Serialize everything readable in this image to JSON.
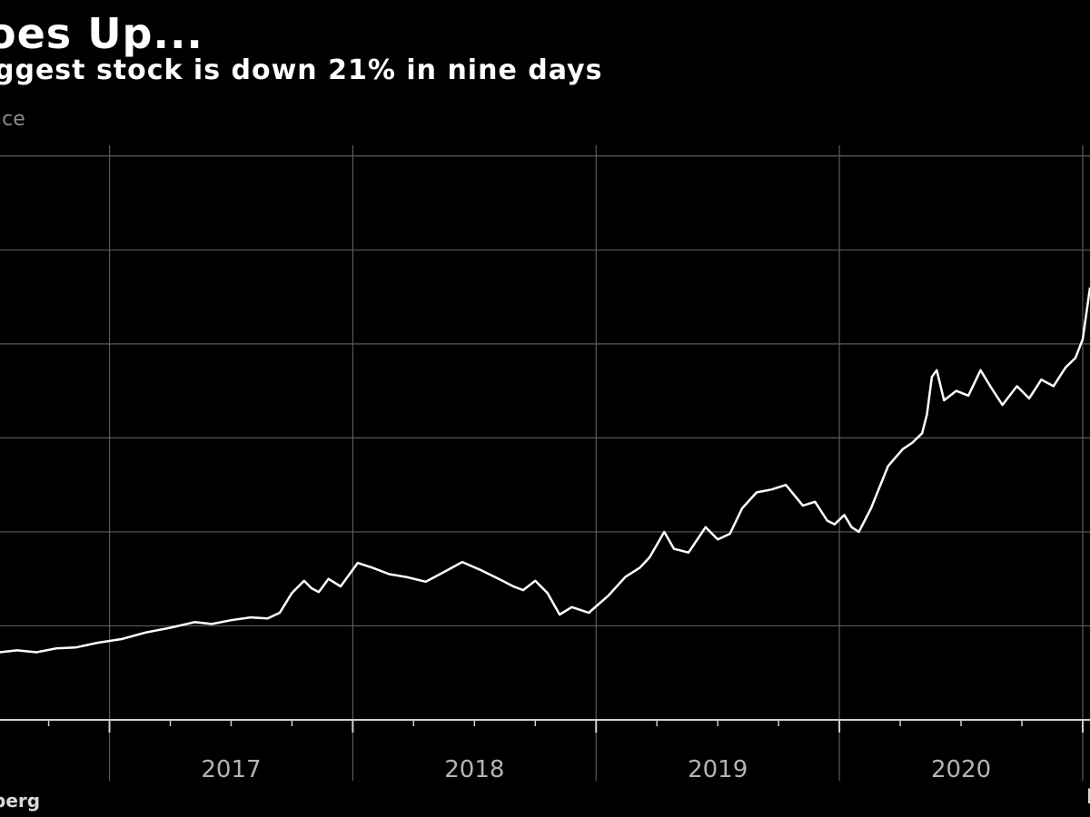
{
  "title": "oes Up...",
  "subtitle": "ggest stock is down 21% in nine days",
  "unit_label": "ice",
  "source": "berg",
  "source_right": "B",
  "colors": {
    "background": "#000000",
    "line": "#ffffff",
    "grid": "#5a5a5a",
    "axis": "#d0d0d0",
    "tick_label": "#b4b4b4"
  },
  "chart_data": {
    "type": "line",
    "title": "oes Up...",
    "subtitle": "ggest stock is down 21% in nine days",
    "ylabel": "ice",
    "xlabel": "",
    "x_ticks": [
      "2017",
      "2018",
      "2019",
      "2020"
    ],
    "x_range": [
      2016.55,
      2021.03
    ],
    "y_range": [
      0,
      6.5
    ],
    "y_gridlines": [
      1,
      2,
      3,
      4,
      5,
      6
    ],
    "y_tick_labels_visible": false,
    "grid": true,
    "series": [
      {
        "name": "",
        "points": [
          [
            2016.55,
            0.72
          ],
          [
            2016.62,
            0.74
          ],
          [
            2016.7,
            0.72
          ],
          [
            2016.78,
            0.76
          ],
          [
            2016.86,
            0.77
          ],
          [
            2016.95,
            0.82
          ],
          [
            2017.05,
            0.86
          ],
          [
            2017.15,
            0.93
          ],
          [
            2017.25,
            0.98
          ],
          [
            2017.35,
            1.04
          ],
          [
            2017.42,
            1.02
          ],
          [
            2017.5,
            1.06
          ],
          [
            2017.58,
            1.09
          ],
          [
            2017.65,
            1.08
          ],
          [
            2017.7,
            1.14
          ],
          [
            2017.75,
            1.35
          ],
          [
            2017.8,
            1.48
          ],
          [
            2017.83,
            1.4
          ],
          [
            2017.86,
            1.36
          ],
          [
            2017.9,
            1.5
          ],
          [
            2017.95,
            1.42
          ],
          [
            2018.02,
            1.67
          ],
          [
            2018.08,
            1.62
          ],
          [
            2018.15,
            1.55
          ],
          [
            2018.22,
            1.52
          ],
          [
            2018.3,
            1.47
          ],
          [
            2018.38,
            1.58
          ],
          [
            2018.45,
            1.68
          ],
          [
            2018.52,
            1.6
          ],
          [
            2018.6,
            1.5
          ],
          [
            2018.66,
            1.42
          ],
          [
            2018.7,
            1.38
          ],
          [
            2018.75,
            1.48
          ],
          [
            2018.8,
            1.35
          ],
          [
            2018.85,
            1.12
          ],
          [
            2018.9,
            1.2
          ],
          [
            2018.97,
            1.14
          ],
          [
            2019.05,
            1.32
          ],
          [
            2019.12,
            1.52
          ],
          [
            2019.18,
            1.62
          ],
          [
            2019.22,
            1.73
          ],
          [
            2019.28,
            2.0
          ],
          [
            2019.32,
            1.82
          ],
          [
            2019.38,
            1.78
          ],
          [
            2019.45,
            2.05
          ],
          [
            2019.5,
            1.92
          ],
          [
            2019.55,
            1.98
          ],
          [
            2019.6,
            2.25
          ],
          [
            2019.66,
            2.42
          ],
          [
            2019.72,
            2.45
          ],
          [
            2019.78,
            2.5
          ],
          [
            2019.85,
            2.28
          ],
          [
            2019.9,
            2.32
          ],
          [
            2019.95,
            2.12
          ],
          [
            2019.98,
            2.08
          ],
          [
            2020.02,
            2.18
          ],
          [
            2020.05,
            2.05
          ],
          [
            2020.08,
            2.0
          ],
          [
            2020.13,
            2.25
          ],
          [
            2020.2,
            2.7
          ],
          [
            2020.26,
            2.88
          ],
          [
            2020.3,
            2.95
          ],
          [
            2020.34,
            3.05
          ],
          [
            2020.36,
            3.25
          ],
          [
            2020.38,
            3.65
          ],
          [
            2020.4,
            3.72
          ],
          [
            2020.43,
            3.4
          ],
          [
            2020.48,
            3.5
          ],
          [
            2020.53,
            3.45
          ],
          [
            2020.58,
            3.72
          ],
          [
            2020.62,
            3.55
          ],
          [
            2020.67,
            3.35
          ],
          [
            2020.73,
            3.55
          ],
          [
            2020.78,
            3.42
          ],
          [
            2020.83,
            3.62
          ],
          [
            2020.88,
            3.55
          ],
          [
            2020.93,
            3.75
          ],
          [
            2020.97,
            3.85
          ],
          [
            2021.0,
            4.05
          ],
          [
            2021.03,
            4.6
          ]
        ]
      }
    ]
  }
}
